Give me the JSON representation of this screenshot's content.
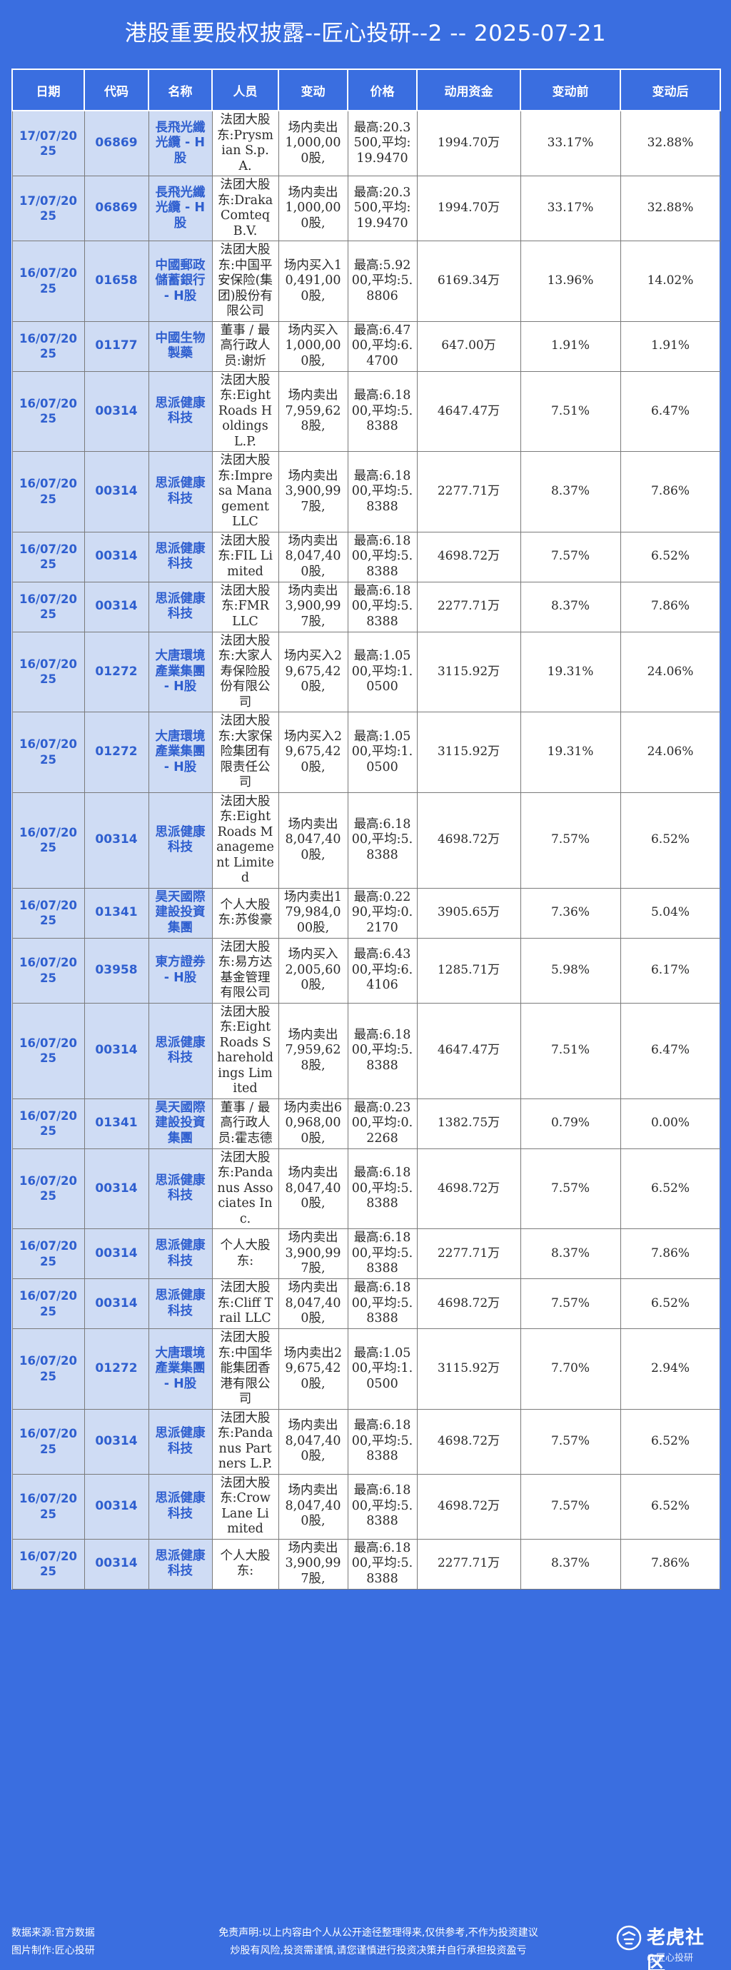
{
  "title": "港股重要股权披露--匠心投研--2 -- 2025-07-21",
  "columns": [
    "日期",
    "代码",
    "名称",
    "人员",
    "变动",
    "价格",
    "动用资金",
    "变动前",
    "变动后"
  ],
  "rows": [
    {
      "date": "17/07/2025",
      "code": "06869",
      "name": "長飛光纖光纜 - H股",
      "person": "法团大股东:Prysmian S.p.A.",
      "change": "场内卖出1,000,000股,",
      "price": "最高:20.3500,平均:19.9470",
      "fund": "1994.70万",
      "before": "33.17%",
      "after": "32.88%"
    },
    {
      "date": "17/07/2025",
      "code": "06869",
      "name": "長飛光纖光纜 - H股",
      "person": "法团大股东:Draka Comteq B.V.",
      "change": "场内卖出1,000,000股,",
      "price": "最高:20.3500,平均:19.9470",
      "fund": "1994.70万",
      "before": "33.17%",
      "after": "32.88%"
    },
    {
      "date": "16/07/2025",
      "code": "01658",
      "name": "中國郵政儲蓄銀行 - H股",
      "person": "法团大股东:中国平安保险(集团)股份有限公司",
      "change": "场内买入10,491,000股,",
      "price": "最高:5.9200,平均:5.8806",
      "fund": "6169.34万",
      "before": "13.96%",
      "after": "14.02%"
    },
    {
      "date": "16/07/2025",
      "code": "01177",
      "name": "中國生物製藥",
      "person": "董事 / 最高行政人员:谢炘",
      "change": "场内买入1,000,000股,",
      "price": "最高:6.4700,平均:6.4700",
      "fund": "647.00万",
      "before": "1.91%",
      "after": "1.91%"
    },
    {
      "date": "16/07/2025",
      "code": "00314",
      "name": "思派健康科技",
      "person": "法团大股东:Eight Roads Holdings L.P.",
      "change": "场内卖出7,959,628股,",
      "price": "最高:6.1800,平均:5.8388",
      "fund": "4647.47万",
      "before": "7.51%",
      "after": "6.47%"
    },
    {
      "date": "16/07/2025",
      "code": "00314",
      "name": "思派健康科技",
      "person": "法团大股东:Impresa Management LLC",
      "change": "场内卖出3,900,997股,",
      "price": "最高:6.1800,平均:5.8388",
      "fund": "2277.71万",
      "before": "8.37%",
      "after": "7.86%"
    },
    {
      "date": "16/07/2025",
      "code": "00314",
      "name": "思派健康科技",
      "person": "法团大股东:FIL Limited",
      "change": "场内卖出8,047,400股,",
      "price": "最高:6.1800,平均:5.8388",
      "fund": "4698.72万",
      "before": "7.57%",
      "after": "6.52%"
    },
    {
      "date": "16/07/2025",
      "code": "00314",
      "name": "思派健康科技",
      "person": "法团大股东:FMR LLC",
      "change": "场内卖出3,900,997股,",
      "price": "最高:6.1800,平均:5.8388",
      "fund": "2277.71万",
      "before": "8.37%",
      "after": "7.86%"
    },
    {
      "date": "16/07/2025",
      "code": "01272",
      "name": "大唐環境產業集團 - H股",
      "person": "法团大股东:大家人寿保险股份有限公司",
      "change": "场内买入29,675,420股,",
      "price": "最高:1.0500,平均:1.0500",
      "fund": "3115.92万",
      "before": "19.31%",
      "after": "24.06%"
    },
    {
      "date": "16/07/2025",
      "code": "01272",
      "name": "大唐環境產業集團 - H股",
      "person": "法团大股东:大家保险集团有限责任公司",
      "change": "场内买入29,675,420股,",
      "price": "最高:1.0500,平均:1.0500",
      "fund": "3115.92万",
      "before": "19.31%",
      "after": "24.06%"
    },
    {
      "date": "16/07/2025",
      "code": "00314",
      "name": "思派健康科技",
      "person": "法团大股东:Eight Roads Management Limited",
      "change": "场内卖出8,047,400股,",
      "price": "最高:6.1800,平均:5.8388",
      "fund": "4698.72万",
      "before": "7.57%",
      "after": "6.52%"
    },
    {
      "date": "16/07/2025",
      "code": "01341",
      "name": "昊天國際建設投資集團",
      "person": "个人大股东:苏俊豪",
      "change": "场内卖出179,984,000股,",
      "price": "最高:0.2290,平均:0.2170",
      "fund": "3905.65万",
      "before": "7.36%",
      "after": "5.04%"
    },
    {
      "date": "16/07/2025",
      "code": "03958",
      "name": "東方證券 - H股",
      "person": "法团大股东:易方达基金管理有限公司",
      "change": "场内买入2,005,600股,",
      "price": "最高:6.4300,平均:6.4106",
      "fund": "1285.71万",
      "before": "5.98%",
      "after": "6.17%"
    },
    {
      "date": "16/07/2025",
      "code": "00314",
      "name": "思派健康科技",
      "person": "法团大股东:Eight Roads Shareholdings Limited",
      "change": "场内卖出7,959,628股,",
      "price": "最高:6.1800,平均:5.8388",
      "fund": "4647.47万",
      "before": "7.51%",
      "after": "6.47%"
    },
    {
      "date": "16/07/2025",
      "code": "01341",
      "name": "昊天國際建設投資集團",
      "person": "董事 / 最高行政人员:霍志德",
      "change": "场内卖出60,968,000股,",
      "price": "最高:0.2300,平均:0.2268",
      "fund": "1382.75万",
      "before": "0.79%",
      "after": "0.00%"
    },
    {
      "date": "16/07/2025",
      "code": "00314",
      "name": "思派健康科技",
      "person": "法团大股东:Pandanus Associates Inc.",
      "change": "场内卖出8,047,400股,",
      "price": "最高:6.1800,平均:5.8388",
      "fund": "4698.72万",
      "before": "7.57%",
      "after": "6.52%"
    },
    {
      "date": "16/07/2025",
      "code": "00314",
      "name": "思派健康科技",
      "person": "个人大股东:",
      "change": "场内卖出3,900,997股,",
      "price": "最高:6.1800,平均:5.8388",
      "fund": "2277.71万",
      "before": "8.37%",
      "after": "7.86%"
    },
    {
      "date": "16/07/2025",
      "code": "00314",
      "name": "思派健康科技",
      "person": "法团大股东:Cliff Trail LLC",
      "change": "场内卖出8,047,400股,",
      "price": "最高:6.1800,平均:5.8388",
      "fund": "4698.72万",
      "before": "7.57%",
      "after": "6.52%"
    },
    {
      "date": "16/07/2025",
      "code": "01272",
      "name": "大唐環境產業集團 - H股",
      "person": "法团大股东:中国华能集团香港有限公司",
      "change": "场内卖出29,675,420股,",
      "price": "最高:1.0500,平均:1.0500",
      "fund": "3115.92万",
      "before": "7.70%",
      "after": "2.94%"
    },
    {
      "date": "16/07/2025",
      "code": "00314",
      "name": "思派健康科技",
      "person": "法团大股东:Pandanus Partners L.P.",
      "change": "场内卖出8,047,400股,",
      "price": "最高:6.1800,平均:5.8388",
      "fund": "4698.72万",
      "before": "7.57%",
      "after": "6.52%"
    },
    {
      "date": "16/07/2025",
      "code": "00314",
      "name": "思派健康科技",
      "person": "法团大股东:Crow Lane Limited",
      "change": "场内卖出8,047,400股,",
      "price": "最高:6.1800,平均:5.8388",
      "fund": "4698.72万",
      "before": "7.57%",
      "after": "6.52%"
    },
    {
      "date": "16/07/2025",
      "code": "00314",
      "name": "思派健康科技",
      "person": "个人大股东:",
      "change": "场内卖出3,900,997股,",
      "price": "最高:6.1800,平均:5.8388",
      "fund": "2277.71万",
      "before": "8.37%",
      "after": "7.86%"
    }
  ],
  "footer": {
    "source": "数据来源:官方数据",
    "maker": "图片制作:匠心投研",
    "disclaimer1": "免责声明:以上内容由个人从公开途径整理得来,仅供参考,不作为投资建议",
    "disclaimer2": "炒股有风险,投资需谨慎,请您谨慎进行投资决策并自行承担投资盈亏",
    "logo_text": "老虎社区",
    "logo_sub": "@匠心投研"
  },
  "colors": {
    "background": "#3a6ee0",
    "key_cell_bg": "#cfdcf4",
    "key_cell_text": "#2f5fcf"
  }
}
